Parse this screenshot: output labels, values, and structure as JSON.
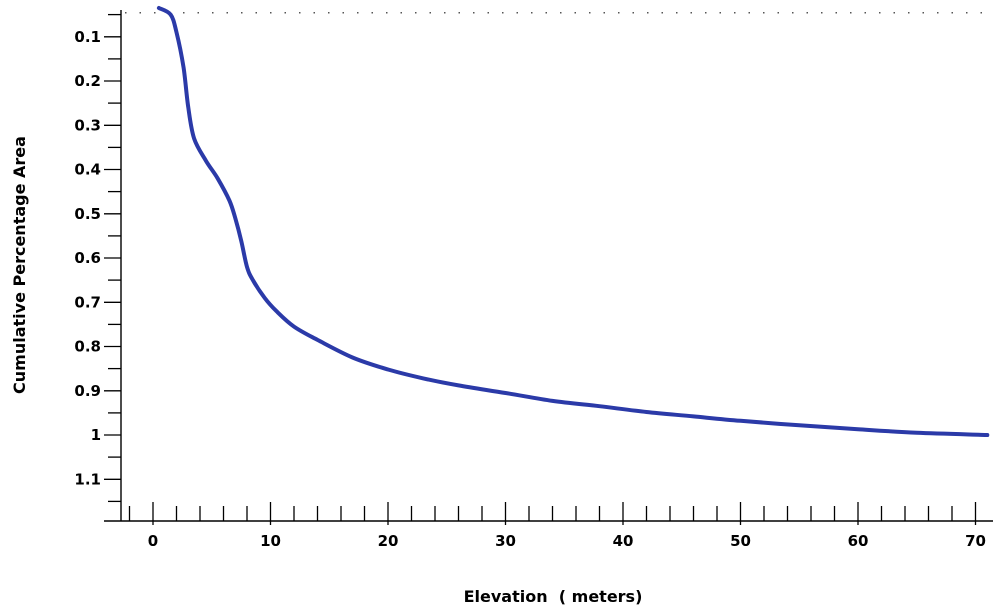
{
  "chart_data": {
    "type": "line",
    "title": "",
    "xlabel": "Elevation  ( meters)",
    "ylabel": "Cumulative Percentage Area",
    "xlim": [
      -4,
      71
    ],
    "ylim": [
      0.03,
      1.2
    ],
    "y_inverted": true,
    "x_ticks": [
      0,
      10,
      20,
      30,
      40,
      50,
      60,
      70
    ],
    "y_ticks": [
      0.1,
      0.2,
      0.3,
      0.4,
      0.5,
      0.6,
      0.7,
      0.8,
      0.9,
      1,
      1.1
    ],
    "x_tick_labels": [
      "0",
      "10",
      "20",
      "30",
      "40",
      "50",
      "60",
      "70"
    ],
    "y_tick_labels": [
      "0.1",
      "0.2",
      "0.3",
      "0.4",
      "0.5",
      "0.6",
      "0.7",
      "0.8",
      "0.9",
      "1",
      "1.1"
    ],
    "grid": false,
    "legend": "none",
    "line_color": "#2b3aa8",
    "series": [
      {
        "x": [
          0.5,
          1.5,
          2.0,
          2.6,
          3.0,
          3.5,
          4.5,
          5.5,
          6.5,
          7.0,
          7.5,
          8.0,
          8.5,
          9.5,
          10.5,
          12.0,
          14.0,
          17.0,
          20.0,
          23.0,
          26.0,
          30.0,
          34.0,
          38.0,
          42.0,
          46.0,
          50.0,
          55.0,
          60.0,
          65.0,
          71.0
        ],
        "y": [
          0.035,
          0.05,
          0.09,
          0.17,
          0.26,
          0.33,
          0.38,
          0.42,
          0.47,
          0.51,
          0.56,
          0.62,
          0.65,
          0.69,
          0.72,
          0.755,
          0.785,
          0.825,
          0.852,
          0.872,
          0.888,
          0.905,
          0.923,
          0.935,
          0.948,
          0.958,
          0.968,
          0.978,
          0.987,
          0.995,
          1.0
        ]
      }
    ]
  }
}
